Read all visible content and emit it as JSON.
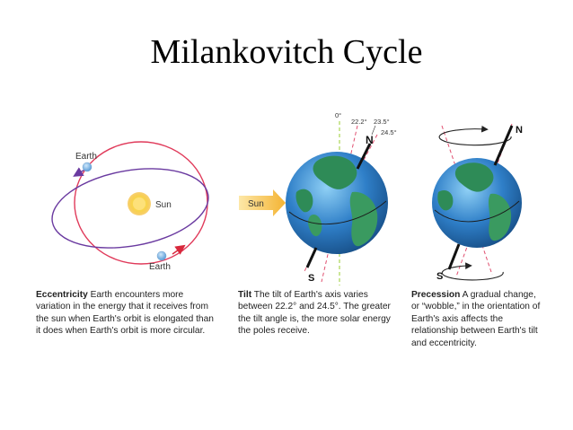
{
  "title": "Milankovitch Cycle",
  "eccentricity": {
    "earth_top_label": "Earth",
    "sun_label": "Sun",
    "earth_bottom_label": "Earth",
    "caption_heading": "Eccentricity",
    "caption_text": " Earth encounters more variation in the energy that it receives from the sun when Earth's orbit is elongated than it does when Earth's orbit is more circular."
  },
  "tilt": {
    "sun_arrow_label": "Sun",
    "angle_0": "0°",
    "angle_22": "22.2°",
    "angle_235": "23.5°",
    "angle_245": "24.5°",
    "north_label": "N",
    "south_label": "S",
    "caption_heading": "Tilt",
    "caption_text": " The tilt of Earth's axis varies between 22.2° and 24.5°. The greater the tilt angle is, the more solar energy the poles receive."
  },
  "precession": {
    "north_label": "N",
    "south_label": "S",
    "caption_heading": "Precession",
    "caption_text": " A gradual change, or “wobble,” in the orientation of Earth's axis affects the relationship between Earth's tilt and eccentricity."
  },
  "colors": {
    "orbit_circular": "#e03a5a",
    "orbit_elliptical": "#6a3aa0",
    "ocean": "#2f7fc8",
    "land": "#2e8b57",
    "sun_arrow": "#f6c04a",
    "dashed_lines": "#e05070",
    "vertical_line": "#9acd32"
  }
}
